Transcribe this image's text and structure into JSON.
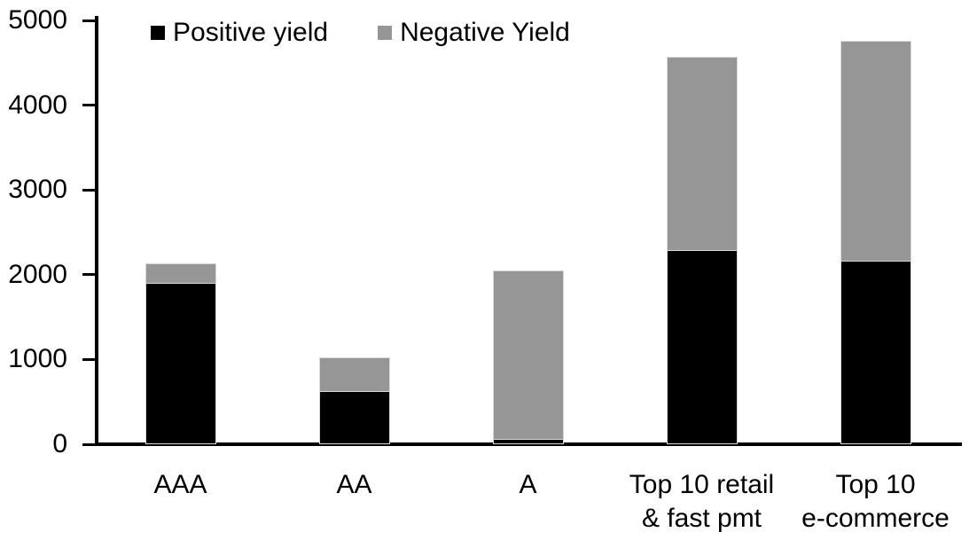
{
  "chart_data": {
    "type": "bar",
    "stacked": true,
    "categories": [
      "AAA",
      "AA",
      "A",
      "Top 10 retail\n& fast pmt",
      "Top 10\ne-commerce"
    ],
    "series": [
      {
        "name": "Positive yield",
        "color": "#000000",
        "values": [
          1890,
          620,
          50,
          2280,
          2150
        ]
      },
      {
        "name": "Negative Yield",
        "color": "#969696",
        "values": [
          220,
          380,
          1980,
          2270,
          2590
        ]
      }
    ],
    "totals": [
      2110,
      1000,
      2030,
      4550,
      4740
    ],
    "title": "",
    "xlabel": "",
    "ylabel": "",
    "ylim": [
      0,
      5000
    ],
    "yticks": [
      0,
      1000,
      2000,
      3000,
      4000,
      5000
    ],
    "grid": "off",
    "legend_position": "top-left",
    "axis_color": "#000000",
    "background_color": "#ffffff"
  }
}
